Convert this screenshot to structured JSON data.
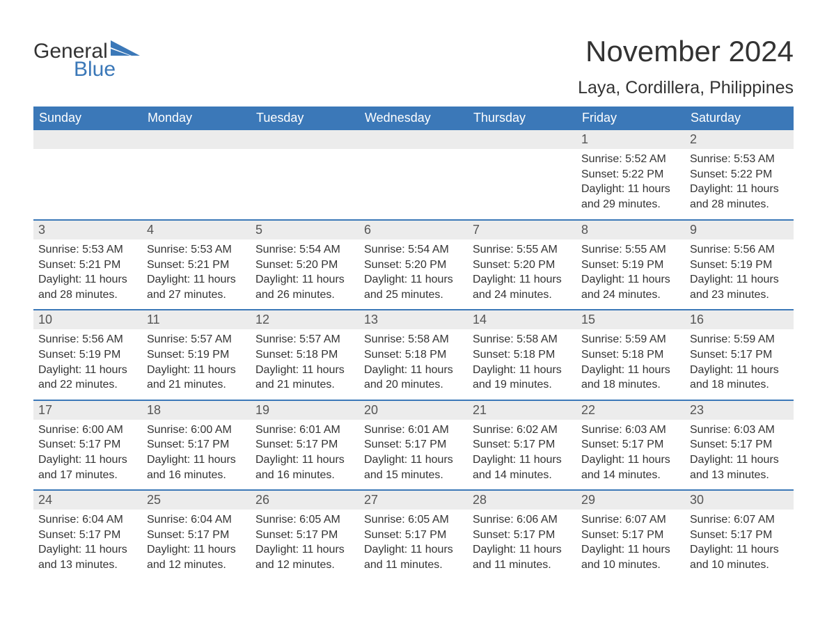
{
  "logo": {
    "word1": "General",
    "word2": "Blue",
    "shape_color": "#3b78b8"
  },
  "title": "November 2024",
  "location": "Laya, Cordillera, Philippines",
  "colors": {
    "header_bg": "#3b78b8",
    "header_text": "#ffffff",
    "daynum_bg": "#ececec",
    "row_border": "#3b78b8",
    "body_text": "#333333",
    "daynum_text": "#555555",
    "page_bg": "#ffffff"
  },
  "typography": {
    "title_fontsize": 42,
    "location_fontsize": 25,
    "header_fontsize": 18,
    "daynum_fontsize": 18,
    "body_fontsize": 16,
    "font_family": "Arial"
  },
  "day_names": [
    "Sunday",
    "Monday",
    "Tuesday",
    "Wednesday",
    "Thursday",
    "Friday",
    "Saturday"
  ],
  "labels": {
    "sunrise": "Sunrise:",
    "sunset": "Sunset:",
    "daylight": "Daylight:"
  },
  "weeks": [
    [
      null,
      null,
      null,
      null,
      null,
      {
        "day": "1",
        "sunrise": "5:52 AM",
        "sunset": "5:22 PM",
        "daylight": "11 hours and 29 minutes."
      },
      {
        "day": "2",
        "sunrise": "5:53 AM",
        "sunset": "5:22 PM",
        "daylight": "11 hours and 28 minutes."
      }
    ],
    [
      {
        "day": "3",
        "sunrise": "5:53 AM",
        "sunset": "5:21 PM",
        "daylight": "11 hours and 28 minutes."
      },
      {
        "day": "4",
        "sunrise": "5:53 AM",
        "sunset": "5:21 PM",
        "daylight": "11 hours and 27 minutes."
      },
      {
        "day": "5",
        "sunrise": "5:54 AM",
        "sunset": "5:20 PM",
        "daylight": "11 hours and 26 minutes."
      },
      {
        "day": "6",
        "sunrise": "5:54 AM",
        "sunset": "5:20 PM",
        "daylight": "11 hours and 25 minutes."
      },
      {
        "day": "7",
        "sunrise": "5:55 AM",
        "sunset": "5:20 PM",
        "daylight": "11 hours and 24 minutes."
      },
      {
        "day": "8",
        "sunrise": "5:55 AM",
        "sunset": "5:19 PM",
        "daylight": "11 hours and 24 minutes."
      },
      {
        "day": "9",
        "sunrise": "5:56 AM",
        "sunset": "5:19 PM",
        "daylight": "11 hours and 23 minutes."
      }
    ],
    [
      {
        "day": "10",
        "sunrise": "5:56 AM",
        "sunset": "5:19 PM",
        "daylight": "11 hours and 22 minutes."
      },
      {
        "day": "11",
        "sunrise": "5:57 AM",
        "sunset": "5:19 PM",
        "daylight": "11 hours and 21 minutes."
      },
      {
        "day": "12",
        "sunrise": "5:57 AM",
        "sunset": "5:18 PM",
        "daylight": "11 hours and 21 minutes."
      },
      {
        "day": "13",
        "sunrise": "5:58 AM",
        "sunset": "5:18 PM",
        "daylight": "11 hours and 20 minutes."
      },
      {
        "day": "14",
        "sunrise": "5:58 AM",
        "sunset": "5:18 PM",
        "daylight": "11 hours and 19 minutes."
      },
      {
        "day": "15",
        "sunrise": "5:59 AM",
        "sunset": "5:18 PM",
        "daylight": "11 hours and 18 minutes."
      },
      {
        "day": "16",
        "sunrise": "5:59 AM",
        "sunset": "5:17 PM",
        "daylight": "11 hours and 18 minutes."
      }
    ],
    [
      {
        "day": "17",
        "sunrise": "6:00 AM",
        "sunset": "5:17 PM",
        "daylight": "11 hours and 17 minutes."
      },
      {
        "day": "18",
        "sunrise": "6:00 AM",
        "sunset": "5:17 PM",
        "daylight": "11 hours and 16 minutes."
      },
      {
        "day": "19",
        "sunrise": "6:01 AM",
        "sunset": "5:17 PM",
        "daylight": "11 hours and 16 minutes."
      },
      {
        "day": "20",
        "sunrise": "6:01 AM",
        "sunset": "5:17 PM",
        "daylight": "11 hours and 15 minutes."
      },
      {
        "day": "21",
        "sunrise": "6:02 AM",
        "sunset": "5:17 PM",
        "daylight": "11 hours and 14 minutes."
      },
      {
        "day": "22",
        "sunrise": "6:03 AM",
        "sunset": "5:17 PM",
        "daylight": "11 hours and 14 minutes."
      },
      {
        "day": "23",
        "sunrise": "6:03 AM",
        "sunset": "5:17 PM",
        "daylight": "11 hours and 13 minutes."
      }
    ],
    [
      {
        "day": "24",
        "sunrise": "6:04 AM",
        "sunset": "5:17 PM",
        "daylight": "11 hours and 13 minutes."
      },
      {
        "day": "25",
        "sunrise": "6:04 AM",
        "sunset": "5:17 PM",
        "daylight": "11 hours and 12 minutes."
      },
      {
        "day": "26",
        "sunrise": "6:05 AM",
        "sunset": "5:17 PM",
        "daylight": "11 hours and 12 minutes."
      },
      {
        "day": "27",
        "sunrise": "6:05 AM",
        "sunset": "5:17 PM",
        "daylight": "11 hours and 11 minutes."
      },
      {
        "day": "28",
        "sunrise": "6:06 AM",
        "sunset": "5:17 PM",
        "daylight": "11 hours and 11 minutes."
      },
      {
        "day": "29",
        "sunrise": "6:07 AM",
        "sunset": "5:17 PM",
        "daylight": "11 hours and 10 minutes."
      },
      {
        "day": "30",
        "sunrise": "6:07 AM",
        "sunset": "5:17 PM",
        "daylight": "11 hours and 10 minutes."
      }
    ]
  ]
}
